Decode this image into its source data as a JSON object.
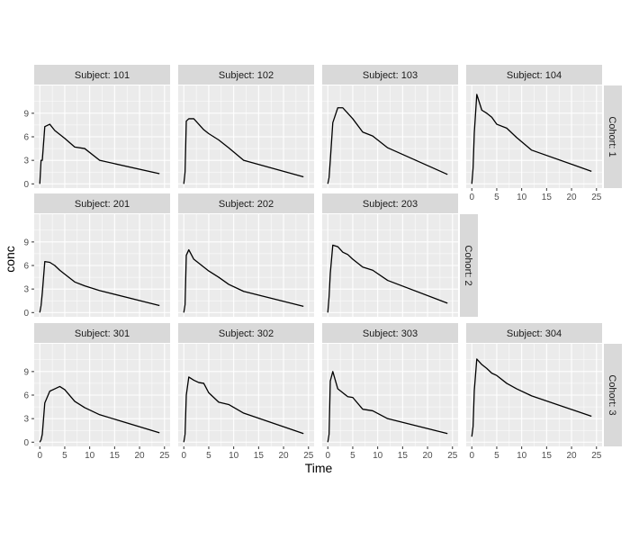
{
  "chart_data": {
    "type": "line",
    "xlabel": "Time",
    "ylabel": "conc",
    "xlim": [
      0,
      25
    ],
    "ylim": [
      0,
      12
    ],
    "x_ticks": [
      0,
      5,
      10,
      15,
      20,
      25
    ],
    "y_ticks": [
      0,
      3,
      6,
      9
    ],
    "grid": true,
    "facet_prefix": "Subject: ",
    "row_prefix": "Cohort: ",
    "rows": [
      {
        "cohort": "1",
        "panels": [
          {
            "subject": "101",
            "time": [
              0,
              0.25,
              0.5,
              1,
              2,
              3,
              4,
              5,
              7,
              9,
              12,
              24
            ],
            "conc": [
              0,
              3.0,
              3.0,
              7.3,
              7.6,
              6.8,
              6.3,
              5.8,
              4.7,
              4.5,
              3.0,
              1.3
            ]
          },
          {
            "subject": "102",
            "time": [
              0,
              0.25,
              0.5,
              1,
              2,
              3,
              4,
              5,
              7,
              9,
              12,
              24
            ],
            "conc": [
              0,
              1.5,
              8.0,
              8.3,
              8.3,
              7.6,
              6.9,
              6.4,
              5.6,
              4.6,
              3.0,
              0.9
            ]
          },
          {
            "subject": "103",
            "time": [
              0,
              0.25,
              0.5,
              1,
              2,
              3,
              4,
              5,
              7,
              9,
              12,
              24
            ],
            "conc": [
              0,
              0.8,
              3.0,
              7.8,
              9.7,
              9.7,
              9.0,
              8.3,
              6.6,
              6.1,
              4.6,
              1.2
            ]
          },
          {
            "subject": "104",
            "time": [
              0,
              0.25,
              0.5,
              1,
              2,
              3,
              4,
              5,
              7,
              9,
              12,
              24
            ],
            "conc": [
              0,
              2.0,
              6.5,
              11.4,
              9.4,
              9.0,
              8.5,
              7.6,
              7.1,
              5.9,
              4.3,
              1.6
            ]
          }
        ]
      },
      {
        "cohort": "2",
        "panels": [
          {
            "subject": "201",
            "time": [
              0,
              0.25,
              0.5,
              1,
              2,
              3,
              4,
              5,
              7,
              9,
              12,
              24
            ],
            "conc": [
              0,
              0.9,
              2.5,
              6.5,
              6.4,
              6.0,
              5.4,
              4.9,
              3.9,
              3.4,
              2.8,
              0.9
            ]
          },
          {
            "subject": "202",
            "time": [
              0,
              0.25,
              0.5,
              1,
              2,
              3,
              4,
              5,
              7,
              9,
              12,
              24
            ],
            "conc": [
              0,
              1.0,
              7.3,
              8.0,
              6.8,
              6.3,
              5.8,
              5.3,
              4.5,
              3.6,
              2.7,
              0.8
            ]
          },
          {
            "subject": "203",
            "time": [
              0,
              0.25,
              0.5,
              1,
              2,
              3,
              4,
              5,
              7,
              9,
              12,
              24
            ],
            "conc": [
              0,
              2.0,
              5.0,
              8.6,
              8.4,
              7.7,
              7.4,
              6.8,
              5.8,
              5.4,
              4.1,
              1.2
            ]
          }
        ]
      },
      {
        "cohort": "3",
        "panels": [
          {
            "subject": "301",
            "time": [
              0,
              0.25,
              0.5,
              1,
              2,
              3,
              4,
              5,
              7,
              9,
              12,
              24
            ],
            "conc": [
              0,
              0.3,
              1.0,
              5.0,
              6.5,
              6.8,
              7.1,
              6.7,
              5.2,
              4.4,
              3.5,
              1.2
            ]
          },
          {
            "subject": "302",
            "time": [
              0,
              0.25,
              0.5,
              1,
              2,
              3,
              4,
              5,
              7,
              9,
              12,
              24
            ],
            "conc": [
              0,
              1.0,
              6.0,
              8.3,
              7.9,
              7.6,
              7.5,
              6.3,
              5.1,
              4.8,
              3.7,
              1.1
            ]
          },
          {
            "subject": "303",
            "time": [
              0,
              0.25,
              0.5,
              1,
              2,
              3,
              4,
              5,
              7,
              9,
              12,
              24
            ],
            "conc": [
              0,
              1.0,
              7.8,
              9.0,
              6.8,
              6.3,
              5.8,
              5.7,
              4.2,
              4.0,
              3.0,
              1.1
            ]
          },
          {
            "subject": "304",
            "time": [
              0,
              0.25,
              0.5,
              1,
              2,
              3,
              4,
              5,
              7,
              9,
              12,
              24
            ],
            "conc": [
              0.7,
              2.0,
              6.6,
              10.6,
              9.9,
              9.4,
              8.8,
              8.5,
              7.5,
              6.8,
              5.9,
              3.3
            ]
          }
        ]
      }
    ],
    "line_color": "#000000",
    "panel_background": "#ebebeb",
    "gridline_color": "#ffffff",
    "strip_background": "#d9d9d9"
  }
}
